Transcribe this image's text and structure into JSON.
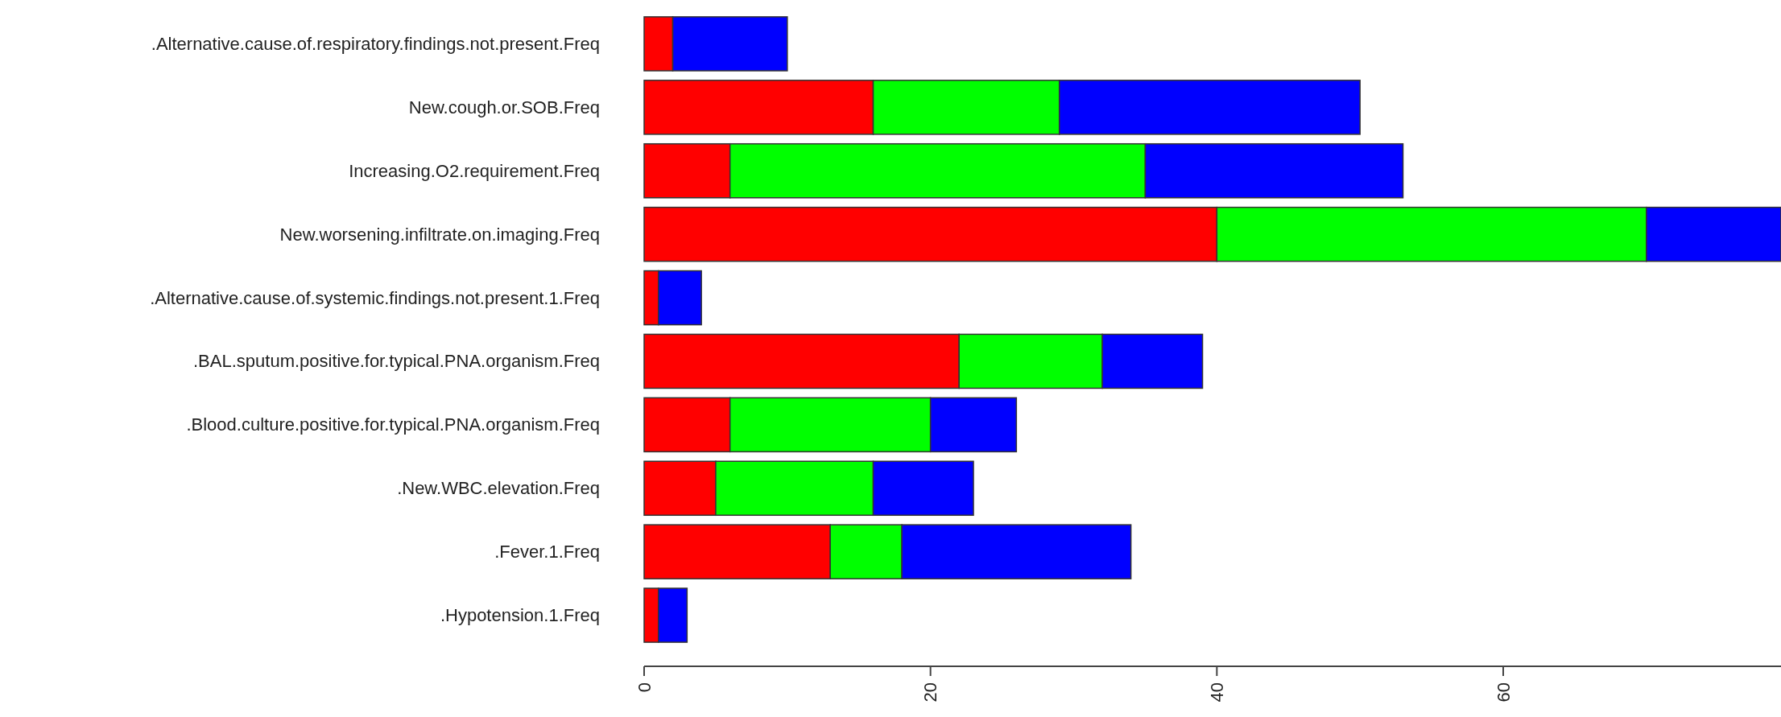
{
  "chart_data": {
    "type": "bar",
    "orientation": "horizontal",
    "stacked": true,
    "categories": [
      ".Alternative.cause.of.respiratory.findings.not.present.Freq",
      "New.cough.or.SOB.Freq",
      "Increasing.O2.requirement.Freq",
      "New.worsening.infiltrate.on.imaging.Freq",
      ".Alternative.cause.of.systemic.findings.not.present.1.Freq",
      ".BAL.sputum.positive.for.typical.PNA.organism.Freq",
      ".Blood.culture.positive.for.typical.PNA.organism.Freq",
      ".New.WBC.elevation.Freq",
      ".Fever.1.Freq",
      ".Hypotension.1.Freq"
    ],
    "series": [
      {
        "color": "#ff0000",
        "values": [
          2,
          16,
          6,
          40,
          1,
          22,
          6,
          5,
          13,
          1
        ]
      },
      {
        "color": "#00ff00",
        "values": [
          0,
          13,
          29,
          30,
          0,
          10,
          14,
          11,
          5,
          0
        ]
      },
      {
        "color": "#0000ff",
        "values": [
          8,
          21,
          18,
          9.4,
          3,
          7,
          6,
          7,
          16,
          2
        ]
      }
    ],
    "xlim": [
      0,
      79.4
    ],
    "xticks": [
      0,
      20,
      40,
      60
    ],
    "grid": false
  }
}
